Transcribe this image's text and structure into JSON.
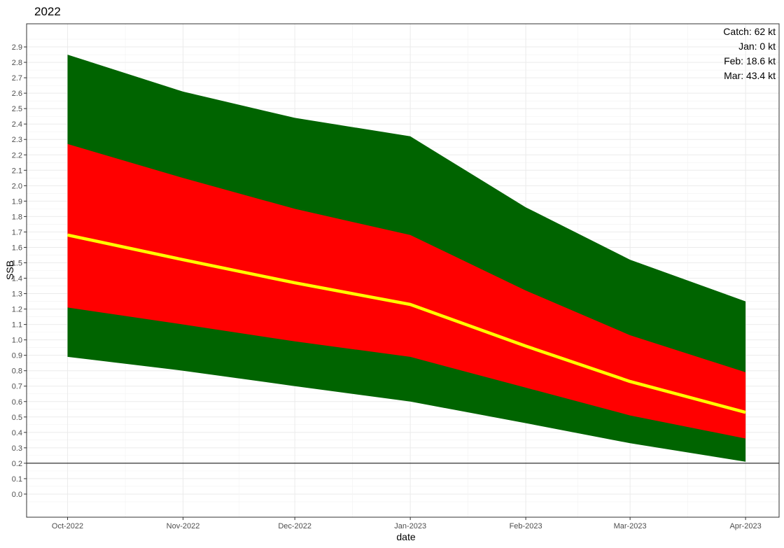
{
  "chart_data": {
    "type": "area",
    "title": "2022",
    "xlabel": "date",
    "ylabel": "SSB",
    "x": [
      "2022-10-01",
      "2022-11-01",
      "2022-12-01",
      "2023-01-01",
      "2023-02-01",
      "2023-03-01",
      "2023-04-01"
    ],
    "x_tick_labels": [
      "Oct-2022",
      "Nov-2022",
      "Dec-2022",
      "Jan-2023",
      "Feb-2023",
      "Mar-2023",
      "Apr-2023"
    ],
    "xlim": [
      "2022-09-20",
      "2023-04-10"
    ],
    "ylim": [
      -0.15,
      3.05
    ],
    "y_ticks": [
      0.0,
      0.1,
      0.2,
      0.3,
      0.4,
      0.5,
      0.6,
      0.7,
      0.8,
      0.9,
      1.0,
      1.1,
      1.2,
      1.3,
      1.4,
      1.5,
      1.6,
      1.7,
      1.8,
      1.9,
      2.0,
      2.1,
      2.2,
      2.3,
      2.4,
      2.5,
      2.6,
      2.7,
      2.8,
      2.9
    ],
    "y_tick_labels": [
      "0.0",
      "0.1",
      "0.2",
      "0.3",
      "0.4",
      "0.5",
      "0.6",
      "0.7",
      "0.8",
      "0.9",
      "1.0",
      "1.1",
      "1.2",
      "1.3",
      "1.4",
      "1.5",
      "1.6",
      "1.7",
      "1.8",
      "1.9",
      "2.0",
      "2.1",
      "2.2",
      "2.3",
      "2.4",
      "2.5",
      "2.6",
      "2.7",
      "2.8",
      "2.9"
    ],
    "grid": true,
    "outer_band": {
      "color": "#006400",
      "lower": [
        0.89,
        0.8,
        0.7,
        0.6,
        0.46,
        0.33,
        0.21
      ],
      "upper": [
        2.85,
        2.61,
        2.44,
        2.32,
        1.86,
        1.52,
        1.25
      ]
    },
    "inner_band": {
      "color": "#ff0000",
      "lower": [
        1.21,
        1.1,
        0.99,
        0.89,
        0.69,
        0.51,
        0.36
      ],
      "upper": [
        2.27,
        2.05,
        1.85,
        1.68,
        1.32,
        1.03,
        0.79
      ]
    },
    "median": {
      "color": "#ffff00",
      "values": [
        1.68,
        1.52,
        1.37,
        1.23,
        0.96,
        0.73,
        0.53
      ]
    },
    "hline": {
      "y": 0.2,
      "color": "#000000"
    },
    "annotations": [
      "Catch: 62 kt",
      "Jan: 0 kt",
      "Feb: 18.6 kt",
      "Mar: 43.4 kt"
    ],
    "annotation_placement": "top-right"
  }
}
